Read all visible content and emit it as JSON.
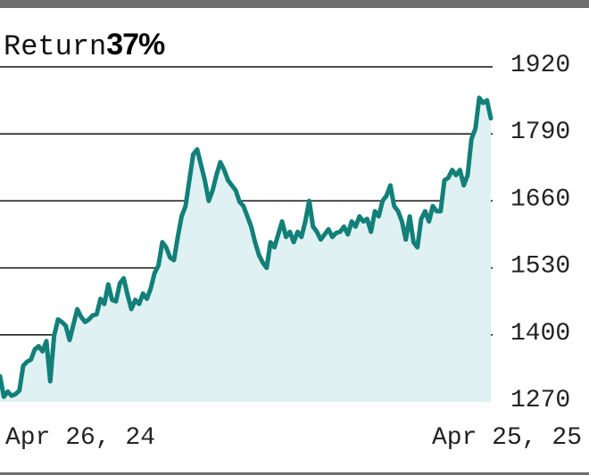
{
  "header": {
    "label": "Return",
    "value": "37%"
  },
  "colors": {
    "line": "#128079",
    "fill": "#dff1f2",
    "grid": "#111111",
    "frame": "#6e6e6e"
  },
  "chart_data": {
    "type": "area",
    "title": "",
    "xlabel": "",
    "ylabel": "",
    "x_tick_labels": [
      "Apr 26, 24",
      "Apr 25, 25"
    ],
    "y_ticks": [
      1920,
      1790,
      1660,
      1530,
      1400,
      1270
    ],
    "ylim": [
      1270,
      1920
    ],
    "grid": "horizontal",
    "y_axis_position": "right",
    "series": [
      {
        "values": [
          1320,
          1280,
          1290,
          1282,
          1285,
          1292,
          1340,
          1348,
          1352,
          1372,
          1378,
          1368,
          1388,
          1310,
          1398,
          1430,
          1425,
          1418,
          1390,
          1420,
          1450,
          1435,
          1425,
          1430,
          1438,
          1440,
          1470,
          1460,
          1498,
          1468,
          1465,
          1500,
          1510,
          1478,
          1450,
          1468,
          1460,
          1480,
          1470,
          1490,
          1520,
          1535,
          1580,
          1570,
          1550,
          1545,
          1590,
          1630,
          1650,
          1700,
          1750,
          1760,
          1730,
          1700,
          1660,
          1680,
          1710,
          1735,
          1720,
          1700,
          1690,
          1680,
          1658,
          1650,
          1630,
          1610,
          1580,
          1555,
          1540,
          1530,
          1580,
          1570,
          1595,
          1620,
          1590,
          1600,
          1580,
          1600,
          1590,
          1620,
          1660,
          1610,
          1600,
          1585,
          1595,
          1605,
          1590,
          1598,
          1600,
          1610,
          1595,
          1620,
          1610,
          1630,
          1620,
          1625,
          1600,
          1640,
          1630,
          1660,
          1670,
          1690,
          1650,
          1640,
          1620,
          1585,
          1630,
          1580,
          1570,
          1625,
          1640,
          1620,
          1650,
          1640,
          1640,
          1700,
          1705,
          1720,
          1710,
          1720,
          1690,
          1710,
          1780,
          1800,
          1860,
          1850,
          1855,
          1820
        ]
      }
    ]
  }
}
